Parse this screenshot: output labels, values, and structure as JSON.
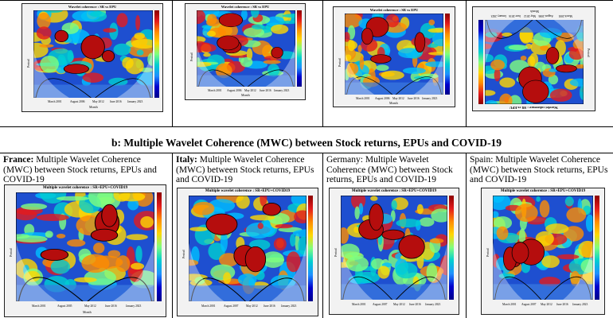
{
  "top_row": [
    {
      "title": "Wavelet coherence : SR vs EPU",
      "y_axis_label": "Period",
      "x_axis_label": "Month",
      "x_ticks": [
        "March 2001",
        "August 2006",
        "May 2012",
        "June 2016",
        "January 2023"
      ]
    },
    {
      "title": "Wavelet coherence : SR vs EPU",
      "y_axis_label": "Period",
      "x_axis_label": "Month",
      "x_ticks": [
        "March 2001",
        "August 2006",
        "May 2012",
        "June 2016",
        "January 2023"
      ]
    },
    {
      "title": "Wavelet coherence : SR vs EPU",
      "y_axis_label": "Period",
      "x_axis_label": "Month",
      "x_ticks": [
        "March 2001",
        "August 2006",
        "May 2012",
        "June 2016",
        "January 2023"
      ]
    },
    {
      "title": "Wavelet coherence : SR vs EPU",
      "y_axis_label": "Period",
      "x_axis_label": "Month",
      "x_ticks": [
        "March 2001",
        "August 2006",
        "May 2012",
        "June 2016",
        "January 2023"
      ]
    }
  ],
  "section_b_title": "b: Multiple Wavelet Coherence (MWC) between Stock returns, EPUs and COVID-19",
  "bottom_row": [
    {
      "country": "France:",
      "caption": " Multiple Wavelet Coherence (MWC) between Stock returns, EPUs and COVID-19",
      "plot_title": "Multiple wavelet coherence : SR+EPU+COVID19",
      "y_axis_label": "Period",
      "x_axis_label": "Month",
      "x_ticks": [
        "March 2001",
        "August 2005",
        "May 2012",
        "June 2016",
        "January 2023"
      ]
    },
    {
      "country": "Italy:",
      "caption": " Multiple Wavelet Coherence (MWC) between Stock returns, EPUs and COVID-19",
      "plot_title": "Multiple wavelet coherence : SR+EPU+COVID19",
      "y_axis_label": "Period",
      "x_axis_label": "Month",
      "x_ticks": [
        "March 2001",
        "August 2007",
        "May 2012",
        "June 2016",
        "January 2023"
      ]
    },
    {
      "country": "Germany:",
      "caption": " Multiple Wavelet Coherence (MWC) between Stock returns, EPUs and COVID-19",
      "plot_title": "Multiple wavelet coherence : SR+EPU+COVID19",
      "y_axis_label": "Period",
      "x_axis_label": "Month",
      "x_ticks": [
        "March 2001",
        "August 2007",
        "May 2012",
        "June 2016",
        "January 2023"
      ]
    },
    {
      "country": "Spain:",
      "caption": " Multiple Wavelet Coherence (MWC) between Stock returns, EPUs and COVID-19",
      "plot_title": "Multiple wavelet coherence : SR+EPU+COVID19",
      "y_axis_label": "Period",
      "x_axis_label": "Month",
      "x_ticks": [
        "March 2001",
        "August 2007",
        "May 2012",
        "June 2016",
        "January 2023"
      ]
    }
  ]
}
